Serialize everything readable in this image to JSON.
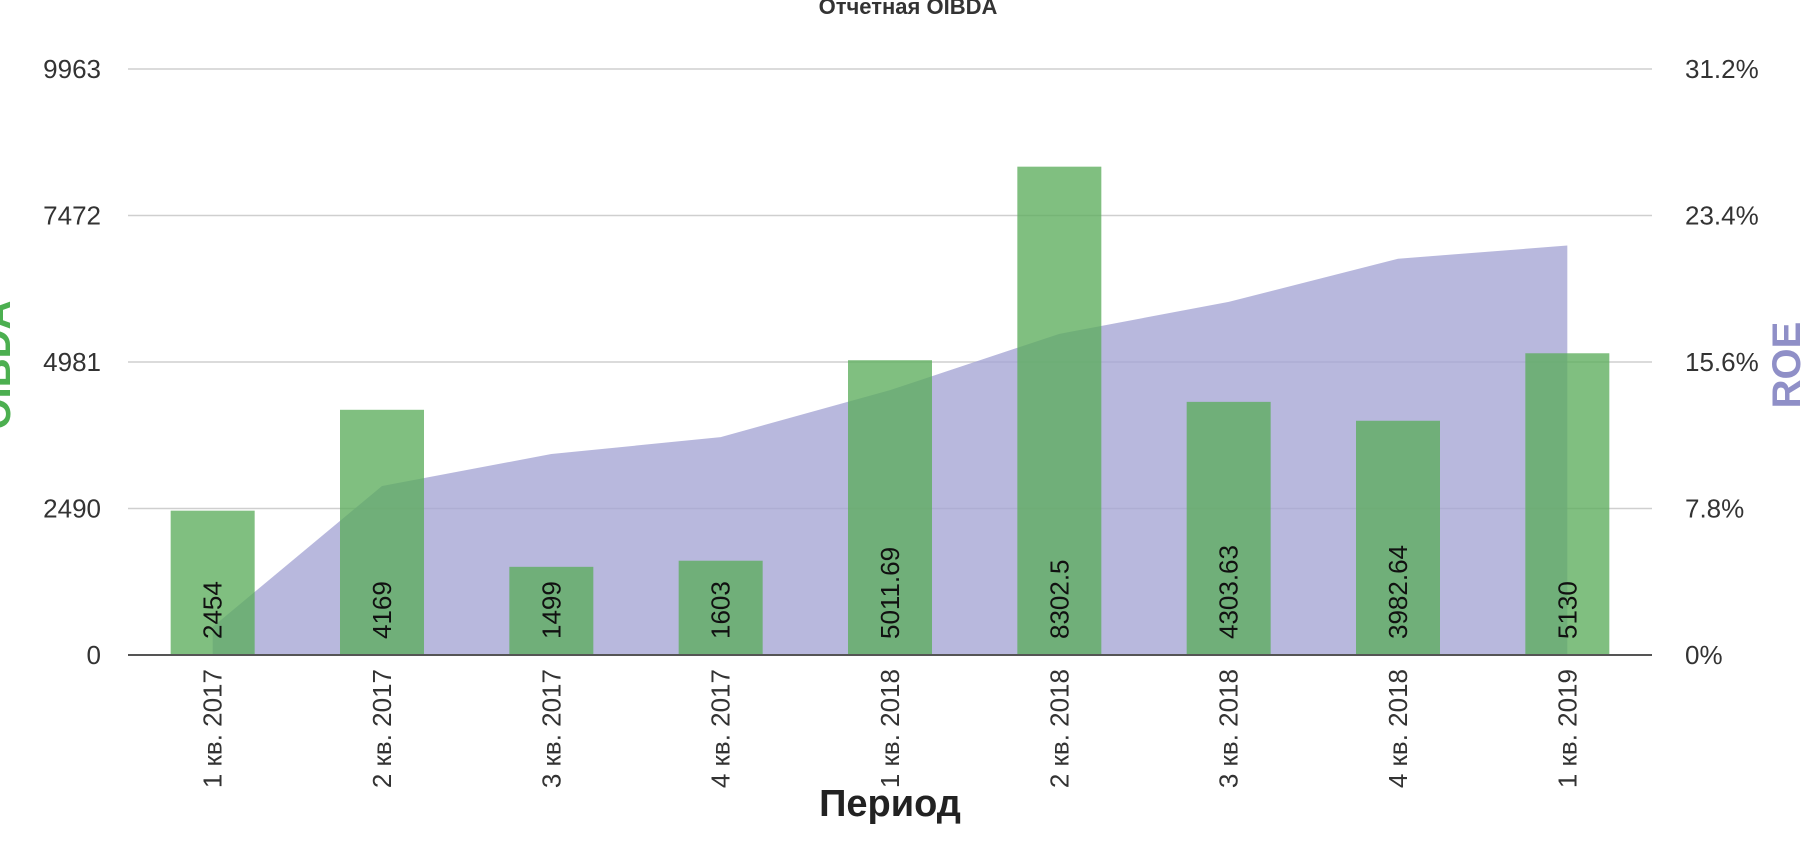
{
  "chart_data": {
    "type": "bar",
    "title": "Отчетная OIBDA",
    "xlabel": "Период",
    "ylabel_left": "OIBDA",
    "ylabel_right": "ROE",
    "categories": [
      "1 кв. 2017",
      "2 кв. 2017",
      "3 кв. 2017",
      "4 кв. 2017",
      "1 кв. 2018",
      "2 кв. 2018",
      "3 кв. 2018",
      "4 кв. 2018",
      "1 кв. 2019"
    ],
    "series": [
      {
        "name": "OIBDA",
        "type": "bar",
        "axis": "left",
        "color": "#5cad5c",
        "values": [
          2454,
          4169,
          1499,
          1603,
          5011.69,
          8302.5,
          4303.63,
          3982.64,
          5130
        ],
        "labels": [
          "2454",
          "4169",
          "1499",
          "1603",
          "5011.69",
          "8302.5",
          "4303.63",
          "3982.64",
          "5130"
        ]
      },
      {
        "name": "ROE",
        "type": "area",
        "axis": "right",
        "color": "#a4a4d4",
        "values": [
          1.5,
          9.0,
          10.7,
          11.6,
          14.1,
          17.1,
          18.8,
          21.1,
          21.8
        ]
      }
    ],
    "y_left": {
      "ylim": [
        0,
        9963
      ],
      "ticks": [
        0,
        2490,
        4981,
        7472,
        9963
      ],
      "tick_labels": [
        "0",
        "2490",
        "4981",
        "7472",
        "9963"
      ]
    },
    "y_right": {
      "ylim": [
        0,
        31.2
      ],
      "ticks": [
        0,
        7.8,
        15.6,
        23.4,
        31.2
      ],
      "tick_labels": [
        "0%",
        "7.8%",
        "15.6%",
        "23.4%",
        "31.2%"
      ]
    },
    "grid": true,
    "legend": "none"
  }
}
